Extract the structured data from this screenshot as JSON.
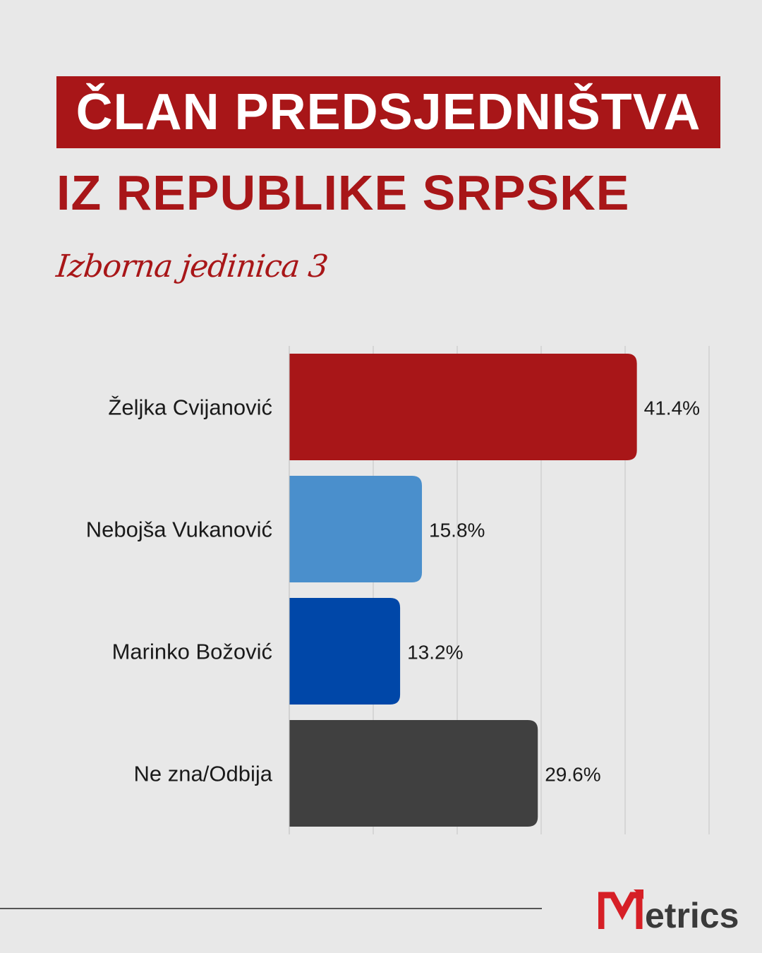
{
  "header": {
    "title_line1": "ČLAN PREDSJEDNIŠTVA",
    "title_line2": "IZ REPUBLIKE SRPSKE",
    "subtitle": "Izborna jedinica 3"
  },
  "chart_data": {
    "type": "bar",
    "orientation": "horizontal",
    "categories": [
      "Željka Cvijanović",
      "Nebojša Vukanović",
      "Marinko Božović",
      "Ne zna/Odbija"
    ],
    "values": [
      41.4,
      15.8,
      13.2,
      29.6
    ],
    "value_labels": [
      "41.4%",
      "15.8%",
      "13.2%",
      "29.6%"
    ],
    "colors": [
      "#a81618",
      "#4a8fcc",
      "#0047a8",
      "#404040"
    ],
    "xlim": [
      0,
      50
    ],
    "grid": true,
    "legend": "none"
  },
  "brand": {
    "logo_text": "Metrics",
    "logo_colors": {
      "accent": "#d61f26",
      "text": "#3a3a3a"
    }
  },
  "colors": {
    "background": "#e8e8e8",
    "accent": "#a81618"
  }
}
